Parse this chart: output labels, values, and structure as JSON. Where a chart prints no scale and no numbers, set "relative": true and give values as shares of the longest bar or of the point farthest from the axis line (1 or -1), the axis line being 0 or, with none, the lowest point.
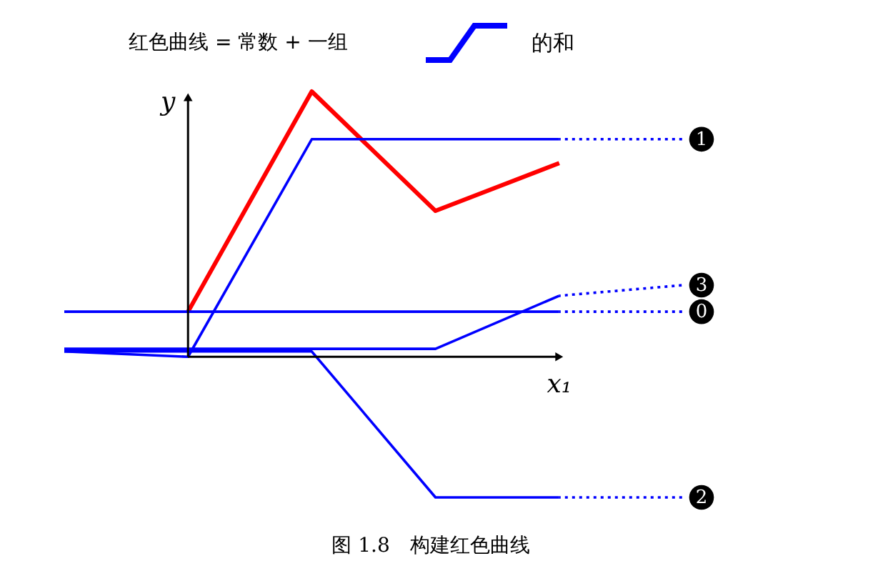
{
  "chart_data": {
    "type": "line",
    "relative": true,
    "title": "红色曲线  = 常数  +  一组",
    "xlabel": "x₁",
    "ylabel": "y",
    "categories": [
      null,
      null,
      null,
      null,
      null,
      null
    ],
    "series": [
      {
        "color": "#ff0000",
        "values": [
          null,
          0.17,
          1.0,
          0.55,
          0.73,
          null
        ]
      },
      {
        "color": "#0000ff",
        "values": [
          0.02,
          0.0,
          0.82,
          0.82,
          0.82,
          null
        ]
      },
      {
        "name": "1",
        "color": "#0000ff",
        "line_style": "dotted",
        "values": [
          null,
          null,
          null,
          null,
          0.82,
          0.82
        ]
      },
      {
        "color": "#0000ff",
        "values": [
          0.03,
          0.03,
          0.03,
          0.03,
          0.23,
          null
        ]
      },
      {
        "name": "3",
        "color": "#0000ff",
        "line_style": "dotted",
        "values": [
          null,
          null,
          null,
          null,
          0.23,
          0.27
        ]
      },
      {
        "color": "#0000ff",
        "values": [
          0.17,
          0.17,
          0.17,
          0.17,
          0.17,
          null
        ]
      },
      {
        "name": "0",
        "color": "#0000ff",
        "line_style": "dotted",
        "values": [
          null,
          null,
          null,
          null,
          0.17,
          0.17
        ]
      },
      {
        "color": "#0000ff",
        "values": [
          0.02,
          0.02,
          0.02,
          -0.53,
          -0.53,
          null
        ]
      },
      {
        "name": "2",
        "color": "#0000ff",
        "line_style": "dotted",
        "values": [
          null,
          null,
          null,
          null,
          -0.53,
          -0.53
        ]
      }
    ],
    "annotations": [
      "的和",
      "图 1.8　构建红色曲线"
    ]
  }
}
